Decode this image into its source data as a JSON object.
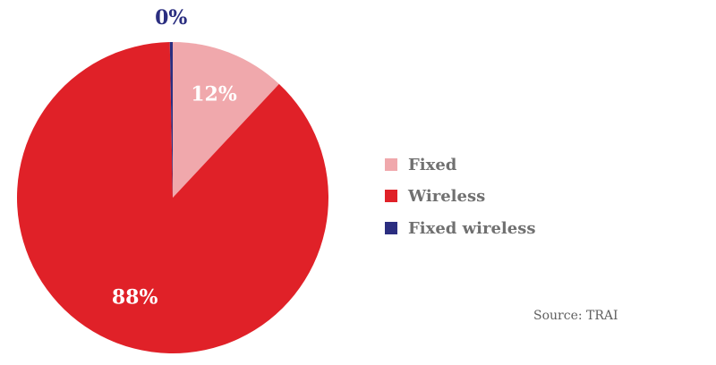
{
  "chart_data": {
    "type": "pie",
    "slices": [
      {
        "name": "Fixed",
        "value": 12,
        "label": "12%",
        "color": "#f0a8ac",
        "label_color": "#ffffff"
      },
      {
        "name": "Wireless",
        "value": 88,
        "label": "88%",
        "color": "#e02128",
        "label_color": "#ffffff"
      },
      {
        "name": "Fixed wireless",
        "value": 0.3,
        "label": "0%",
        "color": "#2b2e80",
        "label_color": "#2b2e80"
      }
    ],
    "legend_placement": "right",
    "source": "Source: TRAI"
  }
}
